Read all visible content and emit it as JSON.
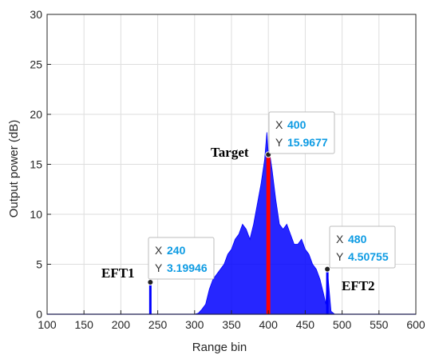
{
  "chart_data": {
    "type": "line",
    "xlabel": "Range bin",
    "ylabel": "Output power (dB)",
    "xlim": [
      100,
      600
    ],
    "ylim": [
      0,
      30
    ],
    "x_ticks": [
      "100",
      "150",
      "200",
      "250",
      "300",
      "350",
      "400",
      "450",
      "500",
      "550",
      "600"
    ],
    "y_ticks": [
      "0",
      "5",
      "10",
      "15",
      "20",
      "25",
      "30"
    ],
    "grid": true,
    "colors": {
      "signal": "#0000ff",
      "target_bar": "#ff0000",
      "grid": "#dedede",
      "tip_value": "#0d9be3"
    },
    "series": [
      {
        "x": [
          300,
          305,
          310,
          315,
          320,
          325,
          330,
          335,
          340,
          345,
          350,
          355,
          360,
          365,
          370,
          375,
          380,
          385,
          390,
          395,
          398,
          400,
          402,
          405,
          410,
          415,
          420,
          425,
          430,
          435,
          440,
          445,
          450,
          455,
          460,
          465,
          470,
          475,
          478,
          480,
          485,
          490
        ],
        "values": [
          0,
          0.1,
          0.5,
          1.0,
          2.5,
          3.5,
          4.0,
          4.5,
          5.0,
          6.0,
          6.5,
          7.5,
          8.0,
          9.0,
          8.5,
          7.5,
          9.0,
          11.0,
          13.0,
          15.5,
          18.2,
          15.97,
          16.0,
          14.5,
          11.5,
          9.0,
          8.5,
          9.0,
          8.0,
          7.0,
          7.0,
          7.5,
          6.5,
          6.0,
          5.0,
          4.5,
          3.5,
          2.0,
          1.0,
          4.51,
          0.3,
          0
        ]
      }
    ],
    "impulses": [
      {
        "x": 240,
        "y": 3.19946
      },
      {
        "x": 480,
        "y": 4.50755
      }
    ],
    "target_bar": {
      "x": 400,
      "y": 15.9677
    },
    "annotations": [
      {
        "label": "EFT1",
        "x": 240,
        "y": 3.19946
      },
      {
        "label": "Target",
        "x": 400,
        "y": 15.9677
      },
      {
        "label": "EFT2",
        "x": 480,
        "y": 4.50755
      }
    ],
    "datatips": [
      {
        "x_key": "X",
        "x_value": "240",
        "y_key": "Y",
        "y_value": "3.19946"
      },
      {
        "x_key": "X",
        "x_value": "400",
        "y_key": "Y",
        "y_value": "15.9677"
      },
      {
        "x_key": "X",
        "x_value": "480",
        "y_key": "Y",
        "y_value": "4.50755"
      }
    ]
  }
}
